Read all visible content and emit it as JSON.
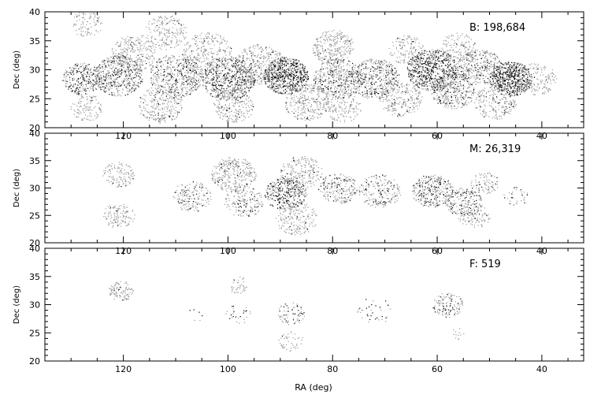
{
  "chart_data": {
    "type": "scatter",
    "xlabel": "RA (deg)",
    "ylabel": "Dec (deg)",
    "xlim": [
      135,
      32
    ],
    "ylim": [
      20,
      40
    ],
    "x_ticks": [
      120,
      100,
      80,
      60,
      40
    ],
    "y_ticks": [
      20,
      25,
      30,
      35,
      40
    ],
    "panels": [
      {
        "label": "B:  198,684",
        "point_color": "#000000",
        "clusters": [
          {
            "ra": 127,
            "dec": 38.0,
            "r": 2.3,
            "density": 0.25,
            "dark": 0.05
          },
          {
            "ra": 128,
            "dec": 28.5,
            "r": 2.8,
            "density": 0.5,
            "dark": 0.6
          },
          {
            "ra": 127,
            "dec": 23.5,
            "r": 2.3,
            "density": 0.3,
            "dark": 0.05
          },
          {
            "ra": 121,
            "dec": 29,
            "r": 3.5,
            "density": 0.6,
            "dark": 0.4
          },
          {
            "ra": 118,
            "dec": 33,
            "r": 3.2,
            "density": 0.35,
            "dark": 0.1
          },
          {
            "ra": 112,
            "dec": 36.5,
            "r": 3.0,
            "density": 0.3,
            "dark": 0.05
          },
          {
            "ra": 110,
            "dec": 29,
            "r": 3.8,
            "density": 0.5,
            "dark": 0.35
          },
          {
            "ra": 113,
            "dec": 24,
            "r": 3.2,
            "density": 0.35,
            "dark": 0.1
          },
          {
            "ra": 104,
            "dec": 33,
            "r": 3.5,
            "density": 0.35,
            "dark": 0.1
          },
          {
            "ra": 100,
            "dec": 28.5,
            "r": 3.8,
            "density": 0.6,
            "dark": 0.6
          },
          {
            "ra": 99,
            "dec": 24,
            "r": 3.0,
            "density": 0.35,
            "dark": 0.1
          },
          {
            "ra": 94,
            "dec": 31,
            "r": 3.5,
            "density": 0.4,
            "dark": 0.2
          },
          {
            "ra": 89,
            "dec": 29,
            "r": 3.2,
            "density": 0.9,
            "dark": 0.8
          },
          {
            "ra": 85,
            "dec": 24.5,
            "r": 3.2,
            "density": 0.4,
            "dark": 0.1
          },
          {
            "ra": 80,
            "dec": 34,
            "r": 3.0,
            "density": 0.45,
            "dark": 0.05
          },
          {
            "ra": 79,
            "dec": 28.5,
            "r": 3.5,
            "density": 0.5,
            "dark": 0.3
          },
          {
            "ra": 78,
            "dec": 23.5,
            "r": 2.5,
            "density": 0.3,
            "dark": 0.05
          },
          {
            "ra": 72,
            "dec": 28.5,
            "r": 3.5,
            "density": 0.5,
            "dark": 0.4
          },
          {
            "ra": 67,
            "dec": 25,
            "r": 3.0,
            "density": 0.35,
            "dark": 0.1
          },
          {
            "ra": 61,
            "dec": 30,
            "r": 3.6,
            "density": 0.75,
            "dark": 0.7
          },
          {
            "ra": 57,
            "dec": 26.5,
            "r": 3.2,
            "density": 0.5,
            "dark": 0.3
          },
          {
            "ra": 52,
            "dec": 30.5,
            "r": 3.2,
            "density": 0.5,
            "dark": 0.3
          },
          {
            "ra": 49,
            "dec": 24.5,
            "r": 3.0,
            "density": 0.35,
            "dark": 0.1
          },
          {
            "ra": 46,
            "dec": 28.5,
            "r": 3.0,
            "density": 0.9,
            "dark": 0.85
          },
          {
            "ra": 41,
            "dec": 28.5,
            "r": 2.8,
            "density": 0.3,
            "dark": 0.05
          },
          {
            "ra": 56,
            "dec": 34,
            "r": 2.5,
            "density": 0.3,
            "dark": 0.05
          },
          {
            "ra": 66,
            "dec": 33.5,
            "r": 2.5,
            "density": 0.3,
            "dark": 0.05
          }
        ]
      },
      {
        "label": "M:  26,319",
        "point_color": "#000000",
        "clusters": [
          {
            "ra": 121,
            "dec": 32.5,
            "r": 2.3,
            "density": 0.35,
            "dark": 0.05
          },
          {
            "ra": 121,
            "dec": 25,
            "r": 2.3,
            "density": 0.35,
            "dark": 0.05
          },
          {
            "ra": 107,
            "dec": 28.5,
            "r": 2.8,
            "density": 0.3,
            "dark": 0.35
          },
          {
            "ra": 99,
            "dec": 32.5,
            "r": 3.2,
            "density": 0.45,
            "dark": 0.1
          },
          {
            "ra": 97,
            "dec": 27.5,
            "r": 2.8,
            "density": 0.3,
            "dark": 0.3
          },
          {
            "ra": 89,
            "dec": 29,
            "r": 3.0,
            "density": 0.6,
            "dark": 0.65
          },
          {
            "ra": 86,
            "dec": 33,
            "r": 3.0,
            "density": 0.35,
            "dark": 0.1
          },
          {
            "ra": 87,
            "dec": 24.5,
            "r": 3.0,
            "density": 0.3,
            "dark": 0.05
          },
          {
            "ra": 79,
            "dec": 30,
            "r": 2.8,
            "density": 0.4,
            "dark": 0.3
          },
          {
            "ra": 71,
            "dec": 29.5,
            "r": 3.0,
            "density": 0.35,
            "dark": 0.35
          },
          {
            "ra": 61,
            "dec": 29.5,
            "r": 3.0,
            "density": 0.5,
            "dark": 0.5
          },
          {
            "ra": 55,
            "dec": 27.5,
            "r": 2.6,
            "density": 0.4,
            "dark": 0.35
          },
          {
            "ra": 51,
            "dec": 31,
            "r": 2.0,
            "density": 0.3,
            "dark": 0.3
          },
          {
            "ra": 53,
            "dec": 25,
            "r": 2.3,
            "density": 0.3,
            "dark": 0.05
          },
          {
            "ra": 45,
            "dec": 28.5,
            "r": 1.8,
            "density": 0.15,
            "dark": 0.4
          }
        ]
      },
      {
        "label": "F:  519",
        "point_color": "#000000",
        "clusters": [
          {
            "ra": 120.5,
            "dec": 32.5,
            "r": 1.8,
            "density": 0.45,
            "dark": 0.1
          },
          {
            "ra": 98,
            "dec": 33.5,
            "r": 1.5,
            "density": 0.25,
            "dark": 0.05
          },
          {
            "ra": 98,
            "dec": 28.5,
            "r": 1.8,
            "density": 0.12,
            "dark": 0.6
          },
          {
            "ra": 88,
            "dec": 28.5,
            "r": 2.0,
            "density": 0.25,
            "dark": 0.6
          },
          {
            "ra": 88,
            "dec": 23.5,
            "r": 1.8,
            "density": 0.2,
            "dark": 0.05
          },
          {
            "ra": 72,
            "dec": 29.0,
            "r": 2.5,
            "density": 0.08,
            "dark": 0.6
          },
          {
            "ra": 58,
            "dec": 30,
            "r": 2.2,
            "density": 0.35,
            "dark": 0.4
          },
          {
            "ra": 56,
            "dec": 25,
            "r": 1.2,
            "density": 0.12,
            "dark": 0.1
          },
          {
            "ra": 107,
            "dec": 28,
            "r": 1.5,
            "density": 0.04,
            "dark": 0.9
          }
        ]
      }
    ]
  }
}
